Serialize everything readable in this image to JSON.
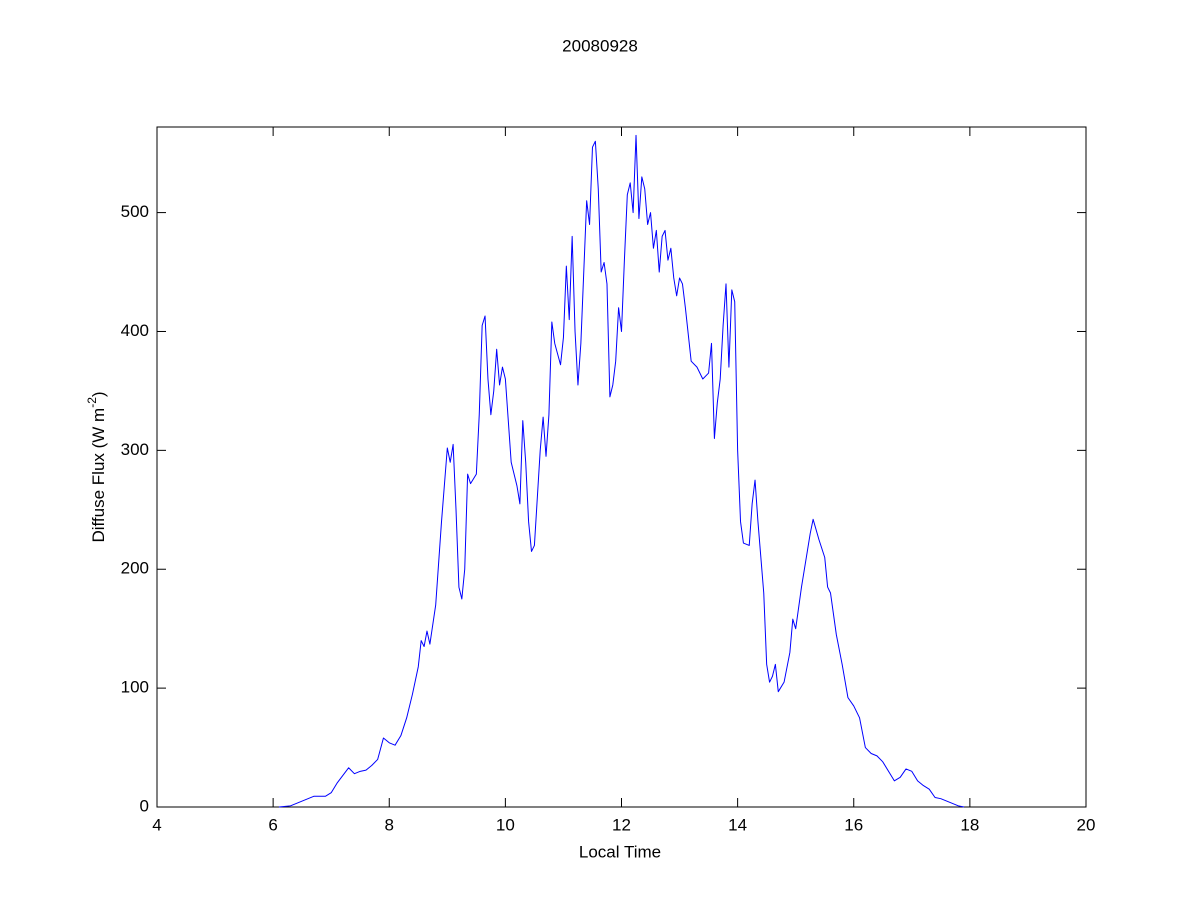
{
  "chart_data": {
    "type": "line",
    "title": "20080928",
    "xlabel": "Local Time",
    "ylabel": [
      "Diffuse Flux (W m",
      "-2",
      ")"
    ],
    "xlim": [
      4,
      20
    ],
    "xticks": [
      4,
      6,
      8,
      10,
      12,
      14,
      16,
      18,
      20
    ],
    "ylim": [
      0,
      572
    ],
    "yticks": [
      0,
      100,
      200,
      300,
      400,
      500
    ],
    "grid": false,
    "x": [
      6.1,
      6.3,
      6.5,
      6.7,
      6.9,
      7.0,
      7.1,
      7.3,
      7.4,
      7.5,
      7.6,
      7.7,
      7.8,
      7.9,
      8.0,
      8.1,
      8.2,
      8.3,
      8.4,
      8.5,
      8.55,
      8.6,
      8.65,
      8.7,
      8.8,
      8.9,
      9.0,
      9.05,
      9.1,
      9.15,
      9.2,
      9.25,
      9.3,
      9.35,
      9.4,
      9.5,
      9.55,
      9.6,
      9.65,
      9.7,
      9.75,
      9.8,
      9.85,
      9.9,
      9.95,
      10.0,
      10.1,
      10.2,
      10.25,
      10.3,
      10.35,
      10.4,
      10.45,
      10.5,
      10.6,
      10.65,
      10.7,
      10.75,
      10.8,
      10.85,
      10.95,
      11.0,
      11.05,
      11.1,
      11.15,
      11.2,
      11.25,
      11.3,
      11.35,
      11.4,
      11.45,
      11.5,
      11.55,
      11.6,
      11.65,
      11.7,
      11.75,
      11.8,
      11.85,
      11.9,
      11.95,
      12.0,
      12.05,
      12.1,
      12.15,
      12.2,
      12.25,
      12.3,
      12.35,
      12.4,
      12.45,
      12.5,
      12.55,
      12.6,
      12.65,
      12.7,
      12.75,
      12.8,
      12.85,
      12.9,
      12.95,
      13.0,
      13.05,
      13.1,
      13.2,
      13.3,
      13.4,
      13.5,
      13.55,
      13.6,
      13.65,
      13.7,
      13.75,
      13.8,
      13.85,
      13.9,
      13.95,
      14.0,
      14.05,
      14.1,
      14.2,
      14.25,
      14.3,
      14.35,
      14.4,
      14.45,
      14.5,
      14.55,
      14.6,
      14.65,
      14.7,
      14.8,
      14.9,
      14.95,
      15.0,
      15.1,
      15.2,
      15.25,
      15.3,
      15.4,
      15.5,
      15.55,
      15.6,
      15.7,
      15.8,
      15.9,
      16.0,
      16.1,
      16.2,
      16.3,
      16.4,
      16.5,
      16.6,
      16.7,
      16.8,
      16.9,
      17.0,
      17.1,
      17.2,
      17.3,
      17.4,
      17.5,
      17.6,
      17.7,
      17.8,
      17.9
    ],
    "series": [
      {
        "color": "#0000ff",
        "values": [
          0,
          1,
          5,
          9,
          9,
          12,
          20,
          33,
          28,
          30,
          31,
          35,
          40,
          58,
          54,
          52,
          60,
          75,
          95,
          118,
          140,
          135,
          148,
          137,
          170,
          240,
          302,
          290,
          305,
          250,
          185,
          175,
          200,
          280,
          272,
          280,
          330,
          405,
          413,
          360,
          330,
          350,
          385,
          355,
          370,
          360,
          290,
          270,
          255,
          325,
          290,
          240,
          215,
          220,
          300,
          328,
          295,
          330,
          408,
          390,
          372,
          395,
          455,
          410,
          480,
          400,
          355,
          390,
          450,
          510,
          490,
          555,
          560,
          520,
          450,
          458,
          440,
          345,
          355,
          375,
          420,
          400,
          460,
          515,
          525,
          500,
          565,
          495,
          530,
          520,
          490,
          500,
          470,
          485,
          450,
          480,
          485,
          460,
          470,
          445,
          430,
          445,
          440,
          420,
          375,
          370,
          360,
          365,
          390,
          310,
          340,
          360,
          405,
          440,
          370,
          435,
          425,
          300,
          240,
          222,
          220,
          255,
          275,
          240,
          210,
          180,
          120,
          105,
          110,
          120,
          97,
          105,
          130,
          158,
          150,
          185,
          215,
          230,
          242,
          225,
          210,
          185,
          180,
          145,
          120,
          92,
          85,
          75,
          50,
          45,
          43,
          38,
          30,
          22,
          25,
          32,
          30,
          22,
          18,
          15,
          8,
          7,
          5,
          3,
          1,
          0
        ]
      }
    ]
  }
}
